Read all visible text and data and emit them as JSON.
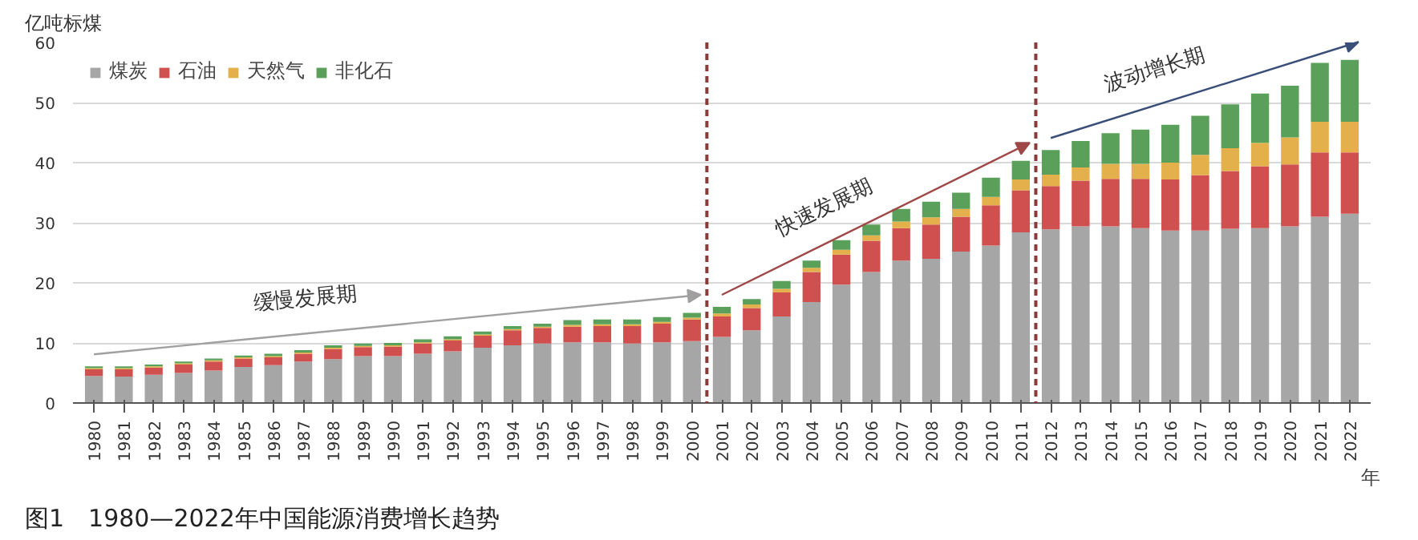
{
  "chart_data": {
    "type": "bar",
    "stacked": true,
    "title": "图1　1980—2022年中国能源消费增长趋势",
    "ylabel": "亿吨标煤",
    "xlabel": "年",
    "x": [
      1980,
      1981,
      1982,
      1983,
      1984,
      1985,
      1986,
      1987,
      1988,
      1989,
      1990,
      1991,
      1992,
      1993,
      1994,
      1995,
      1996,
      1997,
      1998,
      1999,
      2000,
      2001,
      2002,
      2003,
      2004,
      2005,
      2006,
      2007,
      2008,
      2009,
      2010,
      2011,
      2012,
      2013,
      2014,
      2015,
      2016,
      2017,
      2018,
      2019,
      2020,
      2021,
      2022
    ],
    "xlim": [
      1979.3,
      2022.7
    ],
    "xticks": [
      1980,
      1981,
      1982,
      1983,
      1984,
      1985,
      1986,
      1987,
      1988,
      1989,
      1990,
      1991,
      1992,
      1993,
      1994,
      1995,
      1996,
      1997,
      1998,
      1999,
      2000,
      2001,
      2002,
      2003,
      2004,
      2005,
      2006,
      2007,
      2008,
      2009,
      2010,
      2011,
      2012,
      2013,
      2014,
      2015,
      2016,
      2017,
      2018,
      2019,
      2020,
      2021,
      2022
    ],
    "ylim": [
      0,
      60
    ],
    "yticks": [
      0,
      10,
      20,
      30,
      40,
      50,
      60
    ],
    "grid": "y",
    "legend": "top left",
    "series": [
      {
        "name": "煤炭",
        "color": "#a6a6a6",
        "values": [
          4.5,
          4.4,
          4.7,
          5.0,
          5.4,
          6.0,
          6.3,
          6.9,
          7.3,
          7.8,
          7.8,
          8.2,
          8.6,
          9.2,
          9.6,
          9.9,
          10.1,
          10.1,
          9.9,
          10.1,
          10.3,
          11.0,
          12.1,
          14.4,
          16.8,
          19.7,
          21.8,
          23.7,
          24.0,
          25.2,
          26.2,
          28.4,
          28.9,
          29.4,
          29.4,
          29.1,
          28.7,
          28.7,
          29.0,
          29.1,
          29.4,
          31.0,
          31.5
        ]
      },
      {
        "name": "石油",
        "color": "#d0504f",
        "values": [
          1.1,
          1.2,
          1.2,
          1.4,
          1.5,
          1.4,
          1.3,
          1.3,
          1.7,
          1.5,
          1.6,
          1.7,
          1.8,
          2.0,
          2.5,
          2.6,
          2.6,
          2.7,
          2.9,
          3.1,
          3.6,
          3.4,
          3.7,
          4.0,
          5.0,
          5.0,
          5.2,
          5.4,
          5.7,
          5.8,
          6.7,
          7.0,
          7.2,
          7.6,
          7.9,
          8.2,
          8.5,
          9.2,
          9.6,
          10.3,
          10.3,
          10.7,
          10.2
        ]
      },
      {
        "name": "天然气",
        "color": "#e3b04b",
        "values": [
          0.2,
          0.2,
          0.2,
          0.2,
          0.2,
          0.2,
          0.2,
          0.2,
          0.2,
          0.2,
          0.2,
          0.2,
          0.2,
          0.2,
          0.2,
          0.2,
          0.3,
          0.3,
          0.3,
          0.3,
          0.3,
          0.5,
          0.6,
          0.6,
          0.7,
          0.8,
          0.9,
          1.1,
          1.2,
          1.3,
          1.4,
          1.8,
          1.9,
          2.2,
          2.5,
          2.5,
          2.8,
          3.4,
          3.8,
          3.9,
          4.5,
          5.1,
          5.1
        ]
      },
      {
        "name": "非化石",
        "color": "#5aa05a",
        "values": [
          0.3,
          0.3,
          0.3,
          0.3,
          0.3,
          0.3,
          0.4,
          0.4,
          0.4,
          0.4,
          0.4,
          0.5,
          0.5,
          0.5,
          0.5,
          0.5,
          0.8,
          0.8,
          0.8,
          0.8,
          0.8,
          1.1,
          0.9,
          1.3,
          1.2,
          1.6,
          1.8,
          2.1,
          2.6,
          2.7,
          3.2,
          3.1,
          4.1,
          4.4,
          5.1,
          5.7,
          6.3,
          6.5,
          7.3,
          8.2,
          8.6,
          9.8,
          10.3
        ]
      }
    ],
    "ref_lines": [
      {
        "axis": "x",
        "value": 2000.5,
        "color": "#8b3a3a",
        "line_style": "dashed"
      },
      {
        "axis": "x",
        "value": 2011.5,
        "color": "#8b3a3a",
        "line_style": "dashed"
      }
    ],
    "annotations": [
      "缓慢发展期",
      "快速发展期",
      "波动增长期"
    ]
  }
}
